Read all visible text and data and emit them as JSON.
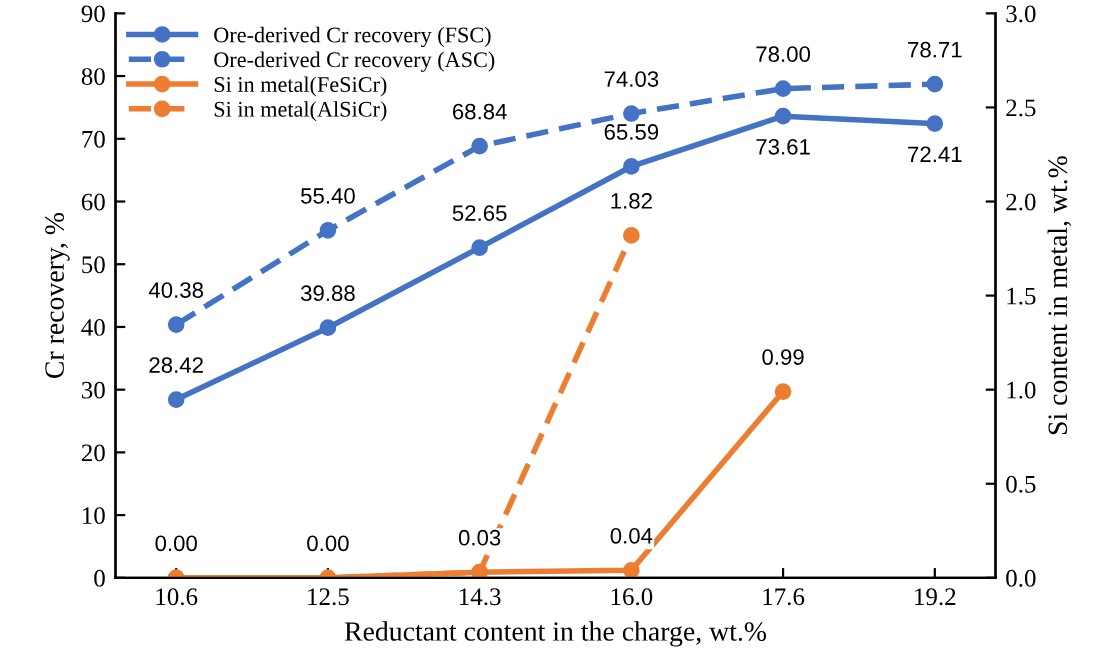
{
  "chart_data": {
    "type": "line",
    "xlabel": "Reductant content in the charge, wt.%",
    "ylabel": "Cr recovery, %",
    "y2label": "Si content in metal, wt.%",
    "categories": [
      "10.6",
      "12.5",
      "14.3",
      "16.0",
      "17.6",
      "19.2"
    ],
    "series": [
      {
        "name": "Ore-derived Cr recovery (FSC)",
        "color": "#4472c4",
        "line_style": "solid",
        "values": [
          28.42,
          39.88,
          52.65,
          65.59,
          73.61,
          72.41
        ],
        "value_labels": [
          "28.42",
          "39.88",
          "52.65",
          "65.59",
          "73.61",
          "72.41"
        ]
      },
      {
        "name": "Ore-derived Cr recovery (ASC)",
        "color": "#4472c4",
        "line_style": "dashed",
        "values": [
          40.38,
          55.4,
          68.84,
          74.03,
          78.0,
          78.71
        ],
        "value_labels": [
          "40.38",
          "55.40",
          "68.84",
          "74.03",
          "78.00",
          "78.71"
        ]
      },
      {
        "name": "Si in metal(FeSiCr)",
        "color": "#ed7d31",
        "line_style": "solid",
        "axis": "y2",
        "values": [
          0.0,
          0.0,
          0.03,
          0.04,
          0.99,
          null
        ],
        "value_labels": [
          "0.00",
          "0.00",
          "0.03",
          "0.04",
          "0.99",
          null
        ]
      },
      {
        "name": "Si in metal(AlSiCr)",
        "color": "#ed7d31",
        "line_style": "dashed",
        "axis": "y2",
        "values": [
          0.0,
          0.0,
          0.03,
          1.82,
          null,
          null
        ],
        "value_labels": [
          null,
          null,
          null,
          "1.82",
          null,
          null
        ]
      }
    ],
    "ylim": [
      0,
      90
    ],
    "yticks": [
      0,
      10,
      20,
      30,
      40,
      50,
      60,
      70,
      80,
      90
    ],
    "y2lim": [
      0,
      3.0
    ],
    "y2ticks": [
      {
        "value": 0,
        "label": "0.0"
      },
      {
        "value": 0.5,
        "label": "0.5"
      },
      {
        "value": 1.0,
        "label": "1.0"
      },
      {
        "value": 1.5,
        "label": "1.5"
      },
      {
        "value": 2.0,
        "label": "2.0"
      },
      {
        "value": 2.5,
        "label": "2.5"
      },
      {
        "value": 3.0,
        "label": "3.0"
      }
    ],
    "marker": "circle",
    "grid": false,
    "legend": "top left"
  }
}
